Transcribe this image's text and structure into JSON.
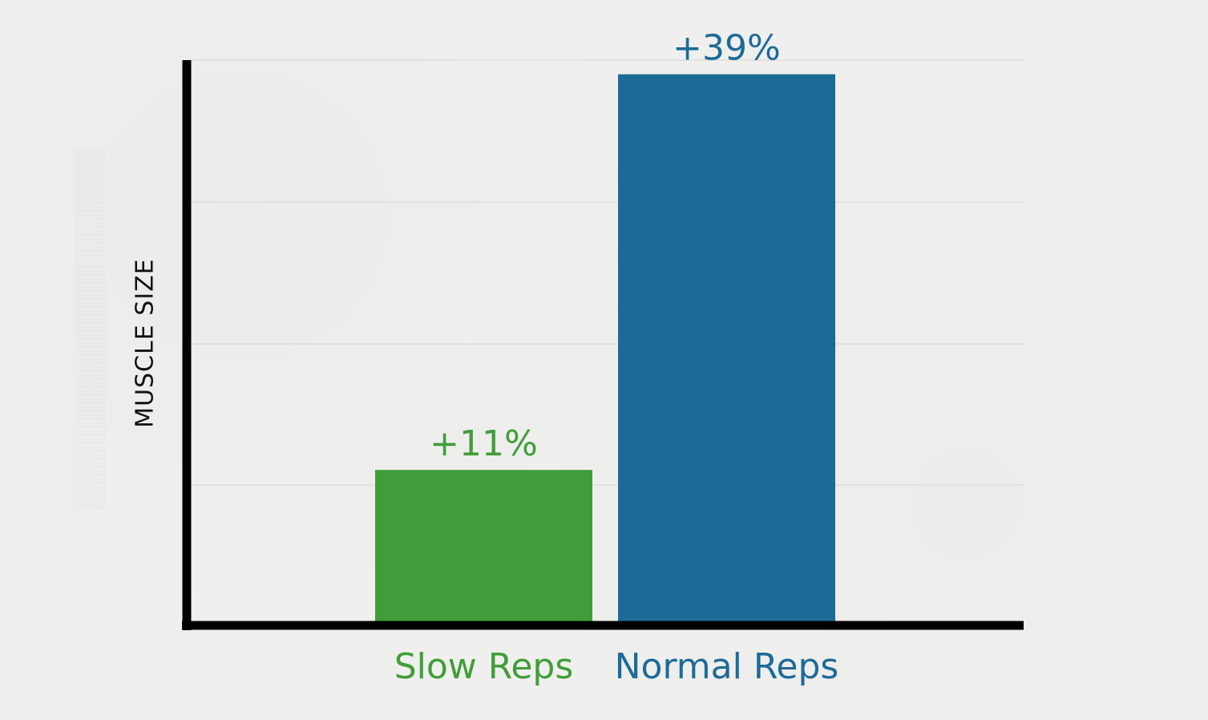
{
  "chart_data": {
    "type": "bar",
    "categories": [
      "Slow Reps",
      "Normal Reps"
    ],
    "values": [
      11,
      39
    ],
    "data_labels": [
      "+11%",
      "+39%"
    ],
    "ylabel": "MUSCLE SIZE",
    "xlabel": "",
    "ylim": [
      0,
      40
    ],
    "grid": true,
    "colors": {
      "Slow Reps": "#419d39",
      "Normal Reps": "#1c6b97"
    },
    "axis_color": "#000000",
    "grid_color": "#dddddd"
  }
}
